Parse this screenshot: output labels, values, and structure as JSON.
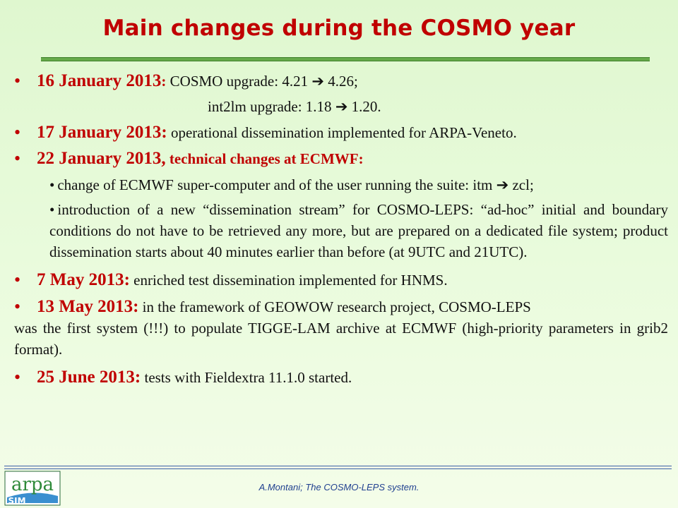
{
  "title": "Main changes during the COSMO year",
  "items": [
    {
      "date": "16 January 2013",
      "date_punct": ":",
      "text": " COSMO upgrade: 4.21 ",
      "arrow": "➔",
      "text2": " 4.26;",
      "subline_a": "int2lm upgrade: 1.18 ",
      "subline_arrow": "➔",
      "subline_b": " 1.20."
    },
    {
      "date": "17 January 2013:",
      "text": " operational dissemination implemented for ARPA-Veneto."
    },
    {
      "date": "22 January 2013,",
      "highlight": " technical changes at ECMWF:",
      "subs": [
        {
          "text_a": "change of ECMWF super-computer and of the user running the suite: itm ",
          "arrow": "➔",
          "text_b": " zcl;"
        },
        {
          "text": "introduction of a new “dissemination stream” for COSMO-LEPS: “ad-hoc” initial and boundary conditions do not have to be retrieved any more, but are prepared on a dedicated file system; product dissemination starts about 40 minutes earlier than before (at 9UTC and 21UTC)."
        }
      ]
    },
    {
      "date": "7 May 2013:",
      "text": " enriched test dissemination implemented for HNMS."
    },
    {
      "date": "13 May 2013:",
      "text_first": " in the framework of GEOWOW research project, COSMO-LEPS",
      "text_rest": "was the first system (!!!) to populate TIGGE-LAM archive at ECMWF (high-priority parameters in grib2 format)."
    },
    {
      "date": "25 June 2013:",
      "text": " tests with Fieldextra 11.1.0 started."
    }
  ],
  "footer": "A.Montani; The COSMO-LEPS system.",
  "logo": {
    "line1": "arpa",
    "line2": "SIM"
  },
  "colors": {
    "title": "#c00000",
    "rule": "#66aa4a",
    "footer": "#1f3f8f"
  },
  "icons": {
    "bullet": "•",
    "arrow_icon": "arrow-right-icon"
  }
}
